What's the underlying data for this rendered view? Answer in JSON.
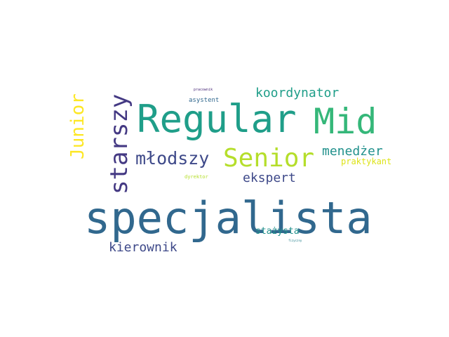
{
  "words": {
    "specjalista": {
      "text": "specjalista",
      "color": "#31688e"
    },
    "regular": {
      "text": "Regular",
      "color": "#1f9e89"
    },
    "mid": {
      "text": "Mid",
      "color": "#35b779"
    },
    "senior": {
      "text": "Senior",
      "color": "#b5de2b"
    },
    "starszy": {
      "text": "starszy",
      "color": "#443983"
    },
    "mlodszy": {
      "text": "młodszy",
      "color": "#3e4989"
    },
    "junior": {
      "text": "Junior",
      "color": "#fde725"
    },
    "koordynator": {
      "text": "koordynator",
      "color": "#1f9e89"
    },
    "menedzer": {
      "text": "menedżer",
      "color": "#21918c"
    },
    "ekspert": {
      "text": "ekspert",
      "color": "#3e4989"
    },
    "praktykant": {
      "text": "praktykant",
      "color": "#dde318"
    },
    "kierownik": {
      "text": "kierownik",
      "color": "#3e4989"
    },
    "stazysta": {
      "text": "stażysta",
      "color": "#21918c"
    },
    "asystent": {
      "text": "asystent",
      "color": "#31688e"
    },
    "pracownik": {
      "text": "pracownik",
      "color": "#482878"
    },
    "dyrektor": {
      "text": "dyrektor",
      "color": "#b5de2b"
    },
    "fizyczny": {
      "text": "fizyczny",
      "color": "#26828e"
    }
  }
}
